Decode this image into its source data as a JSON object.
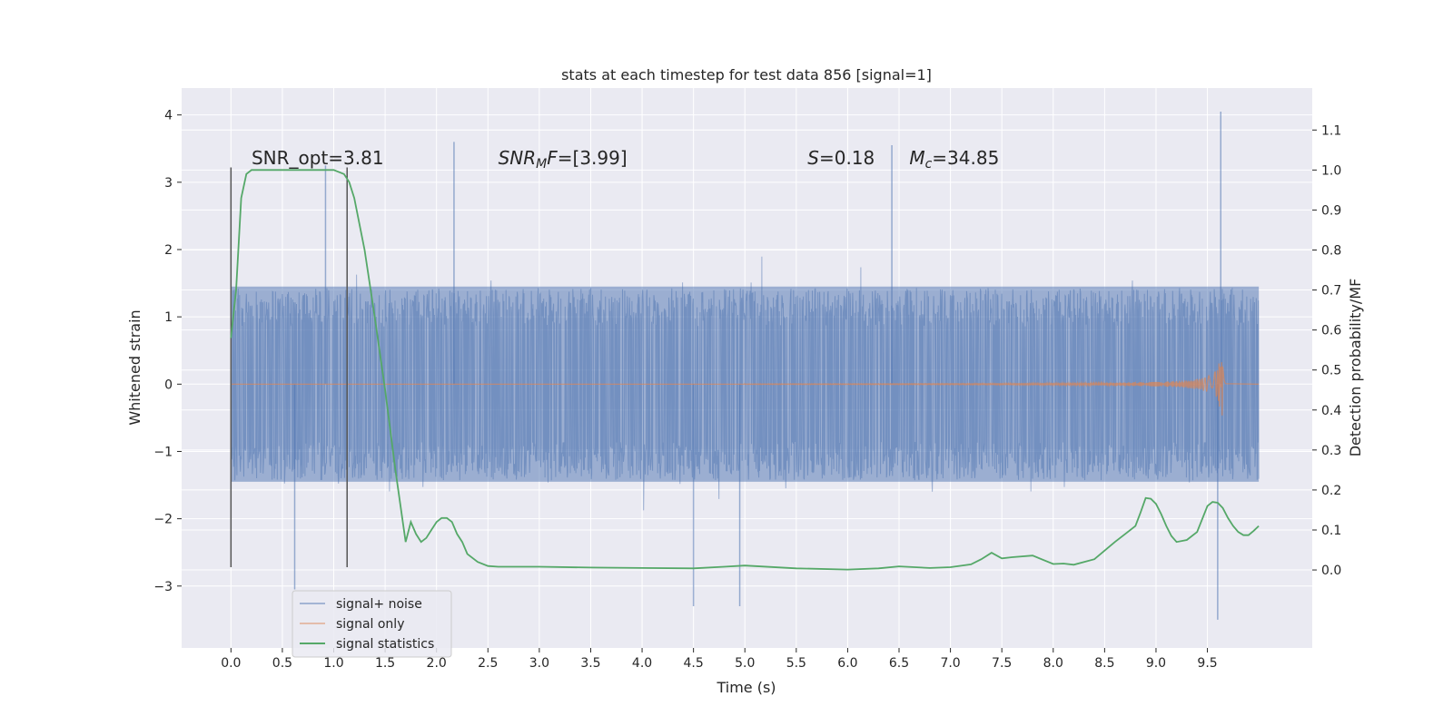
{
  "chart_data": {
    "type": "line",
    "title": "stats at each timestep for test data 856 [signal=1]",
    "xlabel": "Time (s)",
    "ylabel_left": "Whitened strain",
    "ylabel_right": "Detection probability/MF",
    "xlim": [
      -0.48,
      10.52
    ],
    "ylim_left": [
      -3.92,
      4.4
    ],
    "ylim_right": [
      -0.195,
      1.205
    ],
    "x_ticks": [
      0.0,
      0.5,
      1.0,
      1.5,
      2.0,
      2.5,
      3.0,
      3.5,
      4.0,
      4.5,
      5.0,
      5.5,
      6.0,
      6.5,
      7.0,
      7.5,
      8.0,
      8.5,
      9.0,
      9.5
    ],
    "x_tick_labels": [
      "0.0",
      "0.5",
      "1.0",
      "1.5",
      "2.0",
      "2.5",
      "3.0",
      "3.5",
      "4.0",
      "4.5",
      "5.0",
      "5.5",
      "6.0",
      "6.5",
      "7.0",
      "7.5",
      "8.0",
      "8.5",
      "9.0",
      "9.5"
    ],
    "y_ticks_left": [
      4,
      3,
      2,
      1,
      0,
      -1,
      -2,
      -3
    ],
    "y_tick_labels_left": [
      "4",
      "3",
      "2",
      "1",
      "0",
      "−1",
      "−2",
      "−3"
    ],
    "y_ticks_right": [
      1.1,
      1.0,
      0.9,
      0.8,
      0.7,
      0.6,
      0.5,
      0.4,
      0.3,
      0.2,
      0.1,
      0.0
    ],
    "y_tick_labels_right": [
      "1.1",
      "1.0",
      "0.9",
      "0.8",
      "0.7",
      "0.6",
      "0.5",
      "0.4",
      "0.3",
      "0.2",
      "0.1",
      "0.0"
    ],
    "grid": true,
    "legend_placement": "lower-left",
    "series": [
      {
        "name": "signal+ noise",
        "color": "#4c72b0",
        "axis": "left",
        "generated": true,
        "t_start": 0.0,
        "t_end": 10.0,
        "core_amplitude": 1.45,
        "peaks": [
          [
            2.17,
            3.6
          ],
          [
            9.63,
            4.05
          ],
          [
            6.43,
            3.55
          ],
          [
            0.92,
            3.25
          ],
          [
            9.6,
            -3.5
          ],
          [
            0.62,
            -3.05
          ],
          [
            4.5,
            -3.3
          ],
          [
            4.95,
            -3.3
          ]
        ]
      },
      {
        "name": "signal only",
        "color": "#dd8452",
        "axis": "left",
        "chirp_start": 5.0,
        "merger_time": 9.65,
        "peak_amplitude": 0.8,
        "ringdown_end": 9.68
      },
      {
        "name": "signal statistics",
        "color": "#55a868",
        "axis": "right",
        "x": [
          0.0,
          0.05,
          0.1,
          0.15,
          0.2,
          0.3,
          0.5,
          0.8,
          1.0,
          1.1,
          1.15,
          1.2,
          1.3,
          1.4,
          1.5,
          1.6,
          1.7,
          1.75,
          1.8,
          1.85,
          1.9,
          1.95,
          2.0,
          2.05,
          2.1,
          2.15,
          2.2,
          2.25,
          2.3,
          2.4,
          2.5,
          2.6,
          2.8,
          3.0,
          3.5,
          4.0,
          4.5,
          4.8,
          5.0,
          5.5,
          6.0,
          6.3,
          6.5,
          6.8,
          7.0,
          7.2,
          7.3,
          7.4,
          7.5,
          7.6,
          7.8,
          8.0,
          8.1,
          8.2,
          8.4,
          8.6,
          8.7,
          8.8,
          8.85,
          8.9,
          8.95,
          9.0,
          9.05,
          9.1,
          9.15,
          9.2,
          9.3,
          9.4,
          9.5,
          9.55,
          9.6,
          9.65,
          9.7,
          9.75,
          9.8,
          9.85,
          9.9,
          9.95,
          10.0
        ],
        "y": [
          0.58,
          0.7,
          0.93,
          0.99,
          1.0,
          1.0,
          1.0,
          1.0,
          1.0,
          0.99,
          0.97,
          0.93,
          0.8,
          0.63,
          0.45,
          0.25,
          0.07,
          0.12,
          0.09,
          0.07,
          0.08,
          0.1,
          0.12,
          0.13,
          0.13,
          0.12,
          0.09,
          0.07,
          0.04,
          0.02,
          0.01,
          0.008,
          0.008,
          0.008,
          0.006,
          0.005,
          0.004,
          0.008,
          0.011,
          0.004,
          0.001,
          0.004,
          0.009,
          0.005,
          0.007,
          0.014,
          0.027,
          0.043,
          0.029,
          0.032,
          0.036,
          0.015,
          0.016,
          0.013,
          0.027,
          0.07,
          0.09,
          0.11,
          0.144,
          0.18,
          0.178,
          0.165,
          0.14,
          0.11,
          0.085,
          0.07,
          0.075,
          0.095,
          0.16,
          0.17,
          0.168,
          0.155,
          0.13,
          0.11,
          0.095,
          0.087,
          0.087,
          0.098,
          0.11
        ]
      }
    ],
    "vertical_lines": [
      {
        "x": 0.0,
        "y_top": 3.22,
        "y_bottom": -2.72,
        "color": "#555555"
      },
      {
        "x": 1.13,
        "y_top": 3.22,
        "y_bottom": -2.72,
        "color": "#555555"
      }
    ],
    "annotations": [
      {
        "text_main": "SNR_opt=3.81",
        "sub": "",
        "tail": "",
        "x": 0.2,
        "y": 3.27
      },
      {
        "text_main": "SNR",
        "sub": "M",
        "tail": "F=[3.99]",
        "italic_prefix": true,
        "x": 2.6,
        "y": 3.27
      },
      {
        "text_main": "S",
        "sub": "",
        "tail": "=0.18",
        "italic_prefix": true,
        "x": 5.61,
        "y": 3.27
      },
      {
        "text_main": "M",
        "sub": "c",
        "tail": "=34.85",
        "italic_prefix": true,
        "x": 6.6,
        "y": 3.27
      }
    ],
    "legend": [
      {
        "label": "signal+ noise",
        "color": "#4c72b0"
      },
      {
        "label": "signal only",
        "color": "#dd8452"
      },
      {
        "label": "signal statistics",
        "color": "#55a868"
      }
    ]
  }
}
